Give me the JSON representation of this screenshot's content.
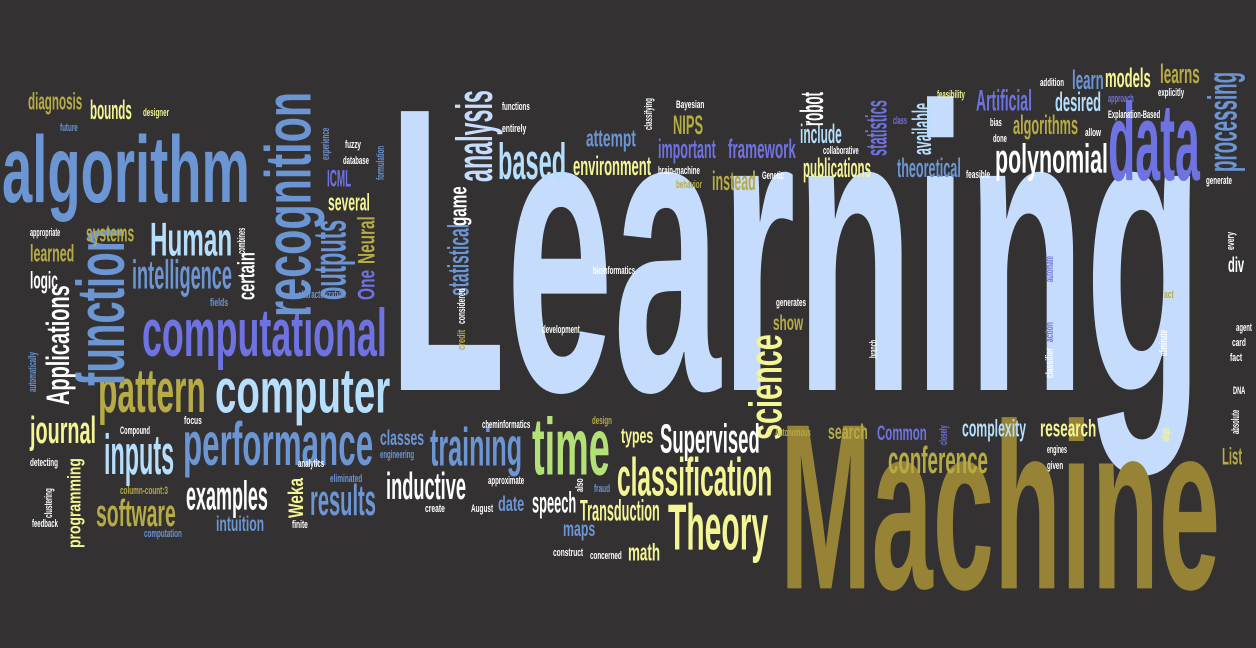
{
  "colors": {
    "background": "#333132",
    "light_blue": "#c6dcfc",
    "blue": "#6c95d4",
    "violet": "#6f73e2",
    "pale_blue": "#b5dffd",
    "yellow": "#f4f593",
    "olive": "#b6ab45",
    "gold": "#968336",
    "green": "#b3e178",
    "white": "#ffffff",
    "gray": "#8a8f9c"
  },
  "words": [
    {
      "id": "learning",
      "text": "Learning",
      "c": "light_blue"
    },
    {
      "id": "machine",
      "text": "Machine",
      "c": "gold"
    },
    {
      "id": "data",
      "text": "data",
      "c": "violet"
    },
    {
      "id": "algorithm",
      "text": "algorithm",
      "c": "blue"
    },
    {
      "id": "computational",
      "text": "computational",
      "c": "violet"
    },
    {
      "id": "computer",
      "text": "computer",
      "c": "pale_blue"
    },
    {
      "id": "performance",
      "text": "performance",
      "c": "blue"
    },
    {
      "id": "recognition",
      "text": "recognition",
      "c": "blue"
    },
    {
      "id": "pattern",
      "text": "pattern",
      "c": "olive"
    },
    {
      "id": "function",
      "text": "function",
      "c": "blue"
    },
    {
      "id": "time",
      "text": "time",
      "c": "green"
    },
    {
      "id": "classification",
      "text": "classification",
      "c": "yellow"
    },
    {
      "id": "theory",
      "text": "Theory",
      "c": "yellow"
    },
    {
      "id": "science",
      "text": "science",
      "c": "yellow"
    },
    {
      "id": "analysis",
      "text": "analysis",
      "c": "light_blue"
    },
    {
      "id": "based",
      "text": "based",
      "c": "pale_blue"
    },
    {
      "id": "processing",
      "text": "processing",
      "c": "blue"
    },
    {
      "id": "polynomial",
      "text": "polynomial",
      "c": "white"
    },
    {
      "id": "training",
      "text": "training",
      "c": "blue"
    },
    {
      "id": "inputs",
      "text": "inputs",
      "c": "pale_blue"
    },
    {
      "id": "human",
      "text": "Human",
      "c": "pale_blue"
    },
    {
      "id": "intelligence",
      "text": "intelligence",
      "c": "blue"
    },
    {
      "id": "outputs",
      "text": "outputs",
      "c": "blue"
    },
    {
      "id": "results",
      "text": "results",
      "c": "blue"
    },
    {
      "id": "software",
      "text": "software",
      "c": "olive"
    },
    {
      "id": "journal",
      "text": "journal",
      "c": "yellow"
    },
    {
      "id": "examples",
      "text": "examples",
      "c": "white"
    },
    {
      "id": "inductive",
      "text": "inductive",
      "c": "white"
    },
    {
      "id": "supervised",
      "text": "Supervised",
      "c": "white"
    },
    {
      "id": "conference",
      "text": "conference",
      "c": "olive"
    },
    {
      "id": "applications",
      "text": "Applications",
      "c": "white"
    },
    {
      "id": "transduction",
      "text": "Transduction",
      "c": "yellow"
    },
    {
      "id": "speech",
      "text": "speech",
      "c": "white"
    },
    {
      "id": "statistical",
      "text": "statistical",
      "c": "blue"
    },
    {
      "id": "environment",
      "text": "environment",
      "c": "yellow"
    },
    {
      "id": "framework",
      "text": "framework",
      "c": "violet"
    },
    {
      "id": "important",
      "text": "important",
      "c": "violet"
    },
    {
      "id": "attempt",
      "text": "attempt",
      "c": "blue"
    },
    {
      "id": "nips",
      "text": "NIPS",
      "c": "olive"
    },
    {
      "id": "artificial",
      "text": "Artificial",
      "c": "violet"
    },
    {
      "id": "algorithms",
      "text": "algorithms",
      "c": "olive"
    },
    {
      "id": "learn",
      "text": "learn",
      "c": "blue"
    },
    {
      "id": "models",
      "text": "models",
      "c": "yellow"
    },
    {
      "id": "learns",
      "text": "learns",
      "c": "olive"
    },
    {
      "id": "desired",
      "text": "desired",
      "c": "pale_blue"
    },
    {
      "id": "theoretical",
      "text": "theoretical",
      "c": "blue"
    },
    {
      "id": "publications",
      "text": "publications",
      "c": "yellow"
    },
    {
      "id": "include",
      "text": "include",
      "c": "pale_blue"
    },
    {
      "id": "instead",
      "text": "instead",
      "c": "olive"
    },
    {
      "id": "statistics",
      "text": "statistics",
      "c": "violet"
    },
    {
      "id": "available",
      "text": "available",
      "c": "pale_blue"
    },
    {
      "id": "robot",
      "text": "robot",
      "c": "white"
    },
    {
      "id": "diagnosis",
      "text": "diagnosis",
      "c": "olive"
    },
    {
      "id": "bounds",
      "text": "bounds",
      "c": "yellow"
    },
    {
      "id": "systems",
      "text": "systems",
      "c": "olive"
    },
    {
      "id": "learned",
      "text": "learned",
      "c": "olive"
    },
    {
      "id": "logic",
      "text": "logic",
      "c": "white"
    },
    {
      "id": "icml",
      "text": "ICML",
      "c": "violet"
    },
    {
      "id": "several",
      "text": "several",
      "c": "yellow"
    },
    {
      "id": "neural",
      "text": "Neural",
      "c": "olive"
    },
    {
      "id": "one",
      "text": "One",
      "c": "violet"
    },
    {
      "id": "certain",
      "text": "certain",
      "c": "white"
    },
    {
      "id": "game",
      "text": "game",
      "c": "white"
    },
    {
      "id": "classes",
      "text": "classes",
      "c": "blue"
    },
    {
      "id": "types",
      "text": "types",
      "c": "yellow"
    },
    {
      "id": "search",
      "text": "search",
      "c": "olive"
    },
    {
      "id": "common",
      "text": "Common",
      "c": "violet"
    },
    {
      "id": "complexity",
      "text": "complexity",
      "c": "pale_blue"
    },
    {
      "id": "research",
      "text": "research",
      "c": "yellow"
    },
    {
      "id": "show",
      "text": "show",
      "c": "olive"
    },
    {
      "id": "date",
      "text": "date",
      "c": "blue"
    },
    {
      "id": "maps",
      "text": "maps",
      "c": "blue"
    },
    {
      "id": "math",
      "text": "math",
      "c": "yellow"
    },
    {
      "id": "intuition",
      "text": "intuition",
      "c": "blue"
    },
    {
      "id": "programming",
      "text": "programming",
      "c": "yellow"
    },
    {
      "id": "weka",
      "text": "Weka",
      "c": "yellow"
    },
    {
      "id": "list",
      "text": "List",
      "c": "olive"
    },
    {
      "id": "div",
      "text": "div",
      "c": "white"
    },
    {
      "id": "fuzzy",
      "text": "fuzzy",
      "c": "white"
    },
    {
      "id": "database",
      "text": "database",
      "c": "white"
    },
    {
      "id": "functions",
      "text": "functions",
      "c": "white"
    },
    {
      "id": "entirely",
      "text": "entirely",
      "c": "white"
    },
    {
      "id": "bayesian",
      "text": "Bayesian",
      "c": "white"
    },
    {
      "id": "designer",
      "text": "designer",
      "c": "yellow"
    },
    {
      "id": "future",
      "text": "future",
      "c": "blue"
    },
    {
      "id": "appropriate",
      "text": "appropriate",
      "c": "white"
    },
    {
      "id": "combines",
      "text": "combines",
      "c": "white"
    },
    {
      "id": "fields",
      "text": "fields",
      "c": "blue"
    },
    {
      "id": "characterization",
      "text": "characterization",
      "c": "blue"
    },
    {
      "id": "experience",
      "text": "experience",
      "c": "blue"
    },
    {
      "id": "formulation",
      "text": "formulation",
      "c": "blue"
    },
    {
      "id": "bioinformatics",
      "text": "bioinformatics",
      "c": "white"
    },
    {
      "id": "considered",
      "text": "considered",
      "c": "white"
    },
    {
      "id": "credit",
      "text": "credit",
      "c": "olive"
    },
    {
      "id": "development",
      "text": "development",
      "c": "white"
    },
    {
      "id": "cheminformatics",
      "text": "cheminformatics",
      "c": "white"
    },
    {
      "id": "design",
      "text": "design",
      "c": "olive"
    },
    {
      "id": "automatically",
      "text": "automatically",
      "c": "blue"
    },
    {
      "id": "compound",
      "text": "Compound",
      "c": "white"
    },
    {
      "id": "focus",
      "text": "focus",
      "c": "white"
    },
    {
      "id": "detecting",
      "text": "detecting",
      "c": "white"
    },
    {
      "id": "clustering",
      "text": "clustering",
      "c": "white"
    },
    {
      "id": "feedback",
      "text": "feedback",
      "c": "white"
    },
    {
      "id": "column_count",
      "text": "column-count:3",
      "c": "olive"
    },
    {
      "id": "computation",
      "text": "computation",
      "c": "blue"
    },
    {
      "id": "analytics",
      "text": "analytics",
      "c": "white"
    },
    {
      "id": "eliminated",
      "text": "eliminated",
      "c": "blue"
    },
    {
      "id": "finite",
      "text": "finite",
      "c": "white"
    },
    {
      "id": "engineering",
      "text": "engineering",
      "c": "blue"
    },
    {
      "id": "approximate",
      "text": "approximate",
      "c": "white"
    },
    {
      "id": "create",
      "text": "create",
      "c": "white"
    },
    {
      "id": "also",
      "text": "also",
      "c": "white"
    },
    {
      "id": "fraud",
      "text": "fraud",
      "c": "blue"
    },
    {
      "id": "august",
      "text": "August",
      "c": "white"
    },
    {
      "id": "construct",
      "text": "construct",
      "c": "white"
    },
    {
      "id": "concerned",
      "text": "concerned",
      "c": "white"
    },
    {
      "id": "classifying",
      "text": "classifying",
      "c": "white"
    },
    {
      "id": "brain_machine",
      "text": "brain-machine",
      "c": "white"
    },
    {
      "id": "behavior",
      "text": "behavior",
      "c": "olive"
    },
    {
      "id": "genetic",
      "text": "Genetic",
      "c": "white"
    },
    {
      "id": "collaborative",
      "text": "collaborative",
      "c": "white"
    },
    {
      "id": "class",
      "text": "class",
      "c": "violet"
    },
    {
      "id": "feasibility",
      "text": "feasibility",
      "c": "yellow"
    },
    {
      "id": "bias",
      "text": "bias",
      "c": "white"
    },
    {
      "id": "done",
      "text": "done",
      "c": "white"
    },
    {
      "id": "feasible",
      "text": "feasible",
      "c": "white"
    },
    {
      "id": "addition",
      "text": "addition",
      "c": "white"
    },
    {
      "id": "approach",
      "text": "approach",
      "c": "violet"
    },
    {
      "id": "explicitly",
      "text": "explicitly",
      "c": "white"
    },
    {
      "id": "explanation_based",
      "text": "Explanation-Based",
      "c": "white"
    },
    {
      "id": "allow",
      "text": "allow",
      "c": "white"
    },
    {
      "id": "generate",
      "text": "generate",
      "c": "white"
    },
    {
      "id": "every",
      "text": "every",
      "c": "white"
    },
    {
      "id": "automate",
      "text": "automate",
      "c": "violet"
    },
    {
      "id": "act",
      "text": "act",
      "c": "olive"
    },
    {
      "id": "agent",
      "text": "agent",
      "c": "white"
    },
    {
      "id": "card",
      "text": "card",
      "c": "white"
    },
    {
      "id": "fact",
      "text": "fact",
      "c": "white"
    },
    {
      "id": "eliminate",
      "text": "eliminate",
      "c": "white"
    },
    {
      "id": "action",
      "text": "action",
      "c": "violet"
    },
    {
      "id": "classifier",
      "text": "classifier",
      "c": "white"
    },
    {
      "id": "dna",
      "text": "DNA",
      "c": "white"
    },
    {
      "id": "absolute",
      "text": "absolute",
      "c": "white"
    },
    {
      "id": "adapt",
      "text": "adapt",
      "c": "yellow"
    },
    {
      "id": "engines",
      "text": "engines",
      "c": "white"
    },
    {
      "id": "given",
      "text": "given",
      "c": "white"
    },
    {
      "id": "closely",
      "text": "closely",
      "c": "violet"
    },
    {
      "id": "autonomous",
      "text": "Autonomous",
      "c": "olive"
    },
    {
      "id": "branch",
      "text": "branch",
      "c": "white"
    },
    {
      "id": "generates",
      "text": "generates",
      "c": "white"
    }
  ]
}
